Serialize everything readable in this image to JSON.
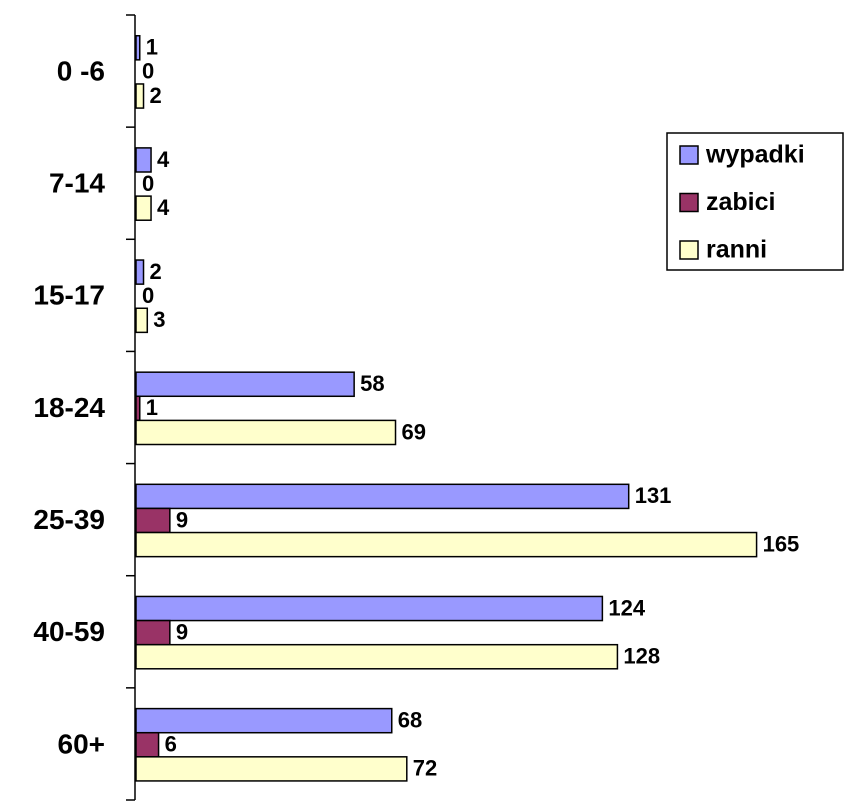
{
  "chart_data": {
    "type": "hbar",
    "categories": [
      "0 -6",
      "7-14",
      "15-17",
      "18-24",
      "25-39",
      "40-59",
      "60+"
    ],
    "series": [
      {
        "name": "wypadki",
        "color": "#9999ff",
        "values": [
          1,
          4,
          2,
          58,
          131,
          124,
          68
        ]
      },
      {
        "name": "zabici",
        "color": "#993366",
        "values": [
          0,
          0,
          0,
          1,
          9,
          9,
          6
        ]
      },
      {
        "name": "ranni",
        "color": "#ffffcc",
        "values": [
          2,
          4,
          3,
          69,
          165,
          128,
          72
        ]
      }
    ],
    "xlim": [
      0,
      180
    ],
    "legend": "right"
  }
}
